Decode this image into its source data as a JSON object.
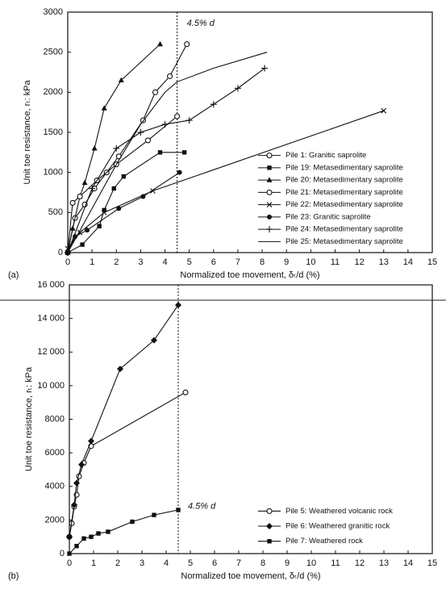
{
  "chart_data": [
    {
      "type": "line",
      "panel_label": "(a)",
      "x_label": "Normalized toe movement, δₜ/d (%)",
      "y_label": "Unit toe resistance, rₜ: kPa",
      "annotation": "4.5% d",
      "vline": 4.5,
      "xlim": [
        0,
        15
      ],
      "xticks": [
        0,
        1,
        2,
        3,
        4,
        5,
        6,
        7,
        8,
        9,
        10,
        11,
        12,
        13,
        14,
        15
      ],
      "ylim": [
        0,
        3000
      ],
      "yticks": [
        0,
        500,
        1000,
        1500,
        2000,
        2500,
        3000
      ],
      "legend": "lower right",
      "series": [
        {
          "name": "Pile 1: Granitic saprolite",
          "color": "#111",
          "marker": "circle-open",
          "x": [
            0,
            0.3,
            0.7,
            1.1,
            1.6,
            2.1,
            3.1,
            3.6,
            4.2,
            4.9
          ],
          "values": [
            0,
            430,
            600,
            800,
            1000,
            1200,
            1650,
            2000,
            2200,
            2600
          ]
        },
        {
          "name": "Pile 19: Metasedimentary saprolite",
          "color": "#111",
          "marker": "square",
          "x": [
            0,
            0.6,
            1.3,
            1.5,
            1.9,
            2.3,
            3.8,
            4.8
          ],
          "values": [
            0,
            100,
            330,
            530,
            800,
            950,
            1250,
            1250
          ]
        },
        {
          "name": "Pile 20: Metasedimentary saprolite",
          "color": "#111",
          "marker": "triangle",
          "x": [
            0,
            0.2,
            0.5,
            0.7,
            1.1,
            1.5,
            2.2,
            3.8
          ],
          "values": [
            0,
            300,
            700,
            870,
            1300,
            1800,
            2150,
            2600
          ]
        },
        {
          "name": "Pile 21: Metasedimentary saprolite",
          "color": "#111",
          "marker": "circle-open",
          "x": [
            0,
            0.2,
            0.5,
            1.2,
            2.0,
            3.3,
            4.5
          ],
          "values": [
            0,
            620,
            700,
            900,
            1100,
            1400,
            1700
          ]
        },
        {
          "name": "Pile 22: Metasedimentary saprolite",
          "color": "#111",
          "marker": "x",
          "x": [
            0,
            0.5,
            1.5,
            3.5,
            13
          ],
          "values": [
            50,
            250,
            500,
            770,
            1770
          ]
        },
        {
          "name": "Pile 23: Granitic saprolite",
          "color": "#111",
          "marker": "circle",
          "x": [
            0,
            0.3,
            0.8,
            2.1,
            3.1,
            4.6
          ],
          "values": [
            0,
            200,
            280,
            550,
            700,
            1000
          ]
        },
        {
          "name": "Pile 24: Metasedimentary saprolite",
          "color": "#111",
          "marker": "plus",
          "x": [
            0,
            1,
            2,
            3,
            4,
            5,
            6,
            7,
            8.1
          ],
          "values": [
            0,
            800,
            1300,
            1500,
            1600,
            1650,
            1850,
            2050,
            2300
          ]
        },
        {
          "name": "Pile 25: Metasedimentary saprolite",
          "color": "#111",
          "marker": "none",
          "x": [
            0,
            1,
            2,
            3,
            4,
            4.5,
            6,
            8.2
          ],
          "values": [
            0,
            550,
            1100,
            1600,
            2000,
            2130,
            2300,
            2500
          ]
        }
      ]
    },
    {
      "type": "line",
      "panel_label": "(b)",
      "x_label": "Normalized toe movement, δₜ/d (%)",
      "y_label": "Unit toe resistance, rₜ: kPa",
      "annotation": "4.5% d",
      "vline": 4.5,
      "xlim": [
        0,
        15
      ],
      "xticks": [
        0,
        1,
        2,
        3,
        4,
        5,
        6,
        7,
        8,
        9,
        10,
        11,
        12,
        13,
        14,
        15
      ],
      "ylim": [
        0,
        16000
      ],
      "yticks": [
        0,
        2000,
        4000,
        6000,
        8000,
        {
          "value": 10000,
          "label": "10 000"
        },
        {
          "value": 12000,
          "label": "12 000"
        },
        {
          "value": 14000,
          "label": "14 000"
        },
        {
          "value": 16000,
          "label": "16 000"
        }
      ],
      "legend": "lower right",
      "series": [
        {
          "name": "Pile 5: Weathered volcanic rock",
          "color": "#111",
          "marker": "circle-open",
          "x": [
            0,
            0.1,
            0.2,
            0.3,
            0.4,
            0.6,
            0.9,
            4.8
          ],
          "values": [
            1000,
            1800,
            2800,
            3500,
            4600,
            5400,
            6400,
            9600
          ]
        },
        {
          "name": "Pile 6: Weathered granitic rock",
          "color": "#111",
          "marker": "diamond",
          "x": [
            0,
            0.2,
            0.3,
            0.5,
            0.9,
            2.1,
            3.5,
            4.5
          ],
          "values": [
            1000,
            2900,
            4200,
            5300,
            6700,
            11000,
            12700,
            14800
          ]
        },
        {
          "name": "Pile 7: Weathered rock",
          "color": "#111",
          "marker": "square",
          "x": [
            0,
            0.3,
            0.6,
            0.9,
            1.2,
            1.6,
            2.6,
            3.5,
            4.5
          ],
          "values": [
            0,
            450,
            900,
            1000,
            1200,
            1300,
            1900,
            2300,
            2600
          ]
        }
      ]
    }
  ]
}
